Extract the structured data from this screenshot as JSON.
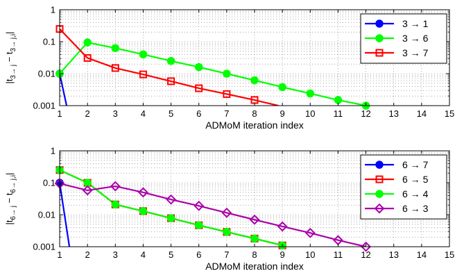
{
  "chart_data": [
    {
      "type": "line",
      "xlabel": "ADMoM iteration index",
      "ylabel_main": "|t",
      "ylabel_sub1": "3→ j",
      "ylabel_mid": " − t",
      "ylabel_sub2": "3→ j,i",
      "ylabel_end": "|",
      "xlim": [
        1,
        15
      ],
      "ylim": [
        0.001,
        1
      ],
      "yscale": "log",
      "grid": true,
      "legend_position": "top-right",
      "x_ticks": [
        1,
        2,
        3,
        4,
        5,
        6,
        7,
        8,
        9,
        10,
        11,
        12,
        13,
        14,
        15
      ],
      "x_tick_labels": [
        "1",
        "2",
        "3",
        "4",
        "5",
        "6",
        "7",
        "8",
        "9",
        "10",
        "11",
        "12",
        "13",
        "14",
        "15"
      ],
      "y_ticks": [
        0.001,
        0.01,
        0.1,
        1
      ],
      "y_tick_labels": [
        "0.001",
        "0.01",
        "0.1",
        "1"
      ],
      "series": [
        {
          "name": "3 → 1",
          "color": "#0000ff",
          "marker": "circle",
          "x": [
            1,
            1.25
          ],
          "y": [
            0.01,
            0.001
          ]
        },
        {
          "name": "3 → 6",
          "color": "#00ff00",
          "marker": "circle",
          "x": [
            1,
            2,
            3,
            4,
            5,
            6,
            7,
            8,
            9,
            10,
            11,
            12
          ],
          "y": [
            0.01,
            0.095,
            0.063,
            0.04,
            0.025,
            0.016,
            0.01,
            0.0062,
            0.0038,
            0.0024,
            0.0015,
            0.001
          ]
        },
        {
          "name": "3 → 7",
          "color": "#ff0000",
          "marker": "square",
          "x": [
            1,
            2,
            3,
            4,
            5,
            6,
            7,
            8,
            8.85
          ],
          "y": [
            0.25,
            0.031,
            0.015,
            0.0095,
            0.0058,
            0.0035,
            0.0023,
            0.0015,
            0.001
          ]
        }
      ]
    },
    {
      "type": "line",
      "xlabel": "ADMoM iteration index",
      "ylabel_main": "|t",
      "ylabel_sub1": "6→ j",
      "ylabel_mid": " − t",
      "ylabel_sub2": "6→ j,i",
      "ylabel_end": "|",
      "xlim": [
        1,
        15
      ],
      "ylim": [
        0.001,
        1
      ],
      "yscale": "log",
      "grid": true,
      "legend_position": "top-right",
      "x_ticks": [
        1,
        2,
        3,
        4,
        5,
        6,
        7,
        8,
        9,
        10,
        11,
        12,
        13,
        14,
        15
      ],
      "x_tick_labels": [
        "1",
        "2",
        "3",
        "4",
        "5",
        "6",
        "7",
        "8",
        "9",
        "10",
        "11",
        "12",
        "13",
        "14",
        "15"
      ],
      "y_ticks": [
        0.001,
        0.01,
        0.1,
        1
      ],
      "y_tick_labels": [
        "0.001",
        "0.01",
        "0.1",
        "1"
      ],
      "series": [
        {
          "name": "6 → 7",
          "color": "#0000ff",
          "marker": "circle",
          "x": [
            1,
            1.35
          ],
          "y": [
            0.1,
            0.001
          ]
        },
        {
          "name": "6 → 5",
          "color": "#ff0000",
          "marker": "square",
          "x": [
            1,
            2,
            3,
            4,
            5,
            6,
            7,
            8,
            9
          ],
          "y": [
            0.25,
            0.1,
            0.021,
            0.013,
            0.0078,
            0.0047,
            0.0029,
            0.0018,
            0.0011
          ]
        },
        {
          "name": "6 → 4",
          "color": "#00ff00",
          "marker": "circle",
          "x": [
            1,
            2,
            3,
            4,
            5,
            6,
            7,
            8,
            9
          ],
          "y": [
            0.25,
            0.1,
            0.021,
            0.013,
            0.0078,
            0.0047,
            0.0029,
            0.0018,
            0.0011
          ]
        },
        {
          "name": "6 → 3",
          "color": "#aa00aa",
          "marker": "diamond",
          "x": [
            1,
            2,
            3,
            4,
            5,
            6,
            7,
            8,
            9,
            10,
            11,
            12
          ],
          "y": [
            0.095,
            0.058,
            0.078,
            0.05,
            0.03,
            0.019,
            0.0115,
            0.007,
            0.0043,
            0.0027,
            0.0016,
            0.001
          ]
        }
      ]
    }
  ]
}
